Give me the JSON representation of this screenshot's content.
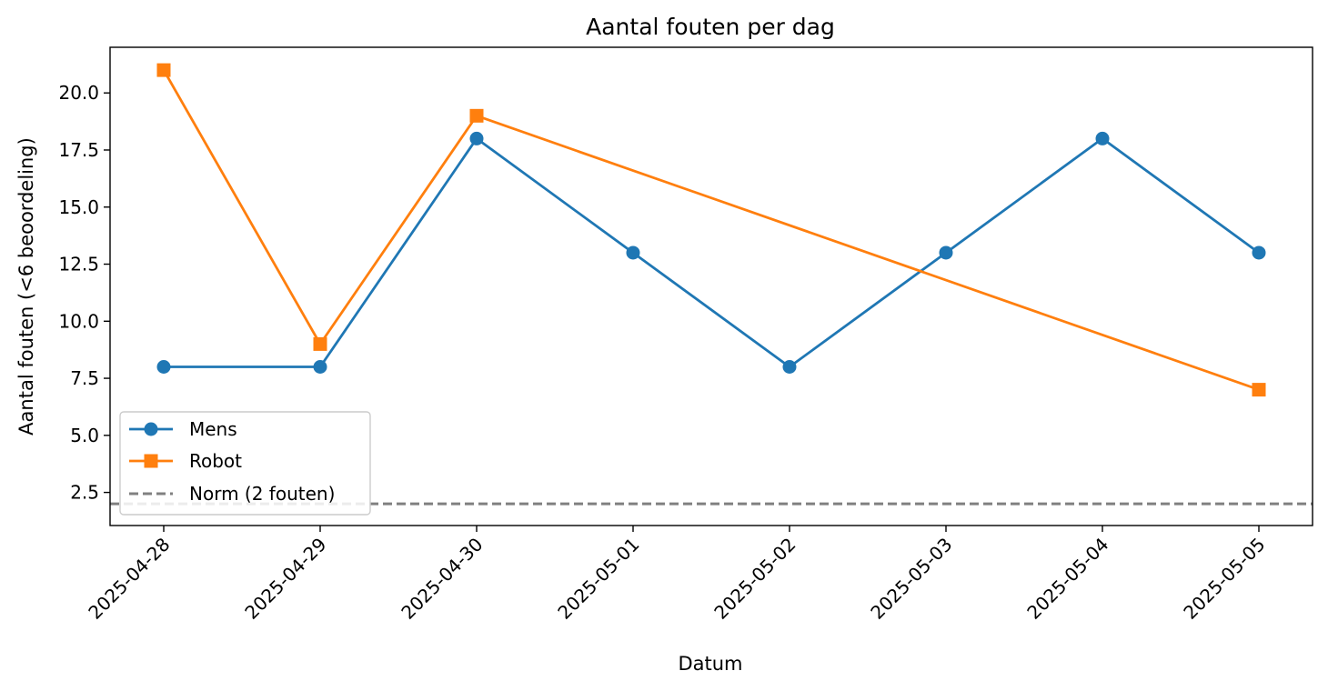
{
  "chart_data": {
    "type": "line",
    "title": "Aantal fouten per dag",
    "xlabel": "Datum",
    "ylabel": "Aantal fouten (<6 beoordeling)",
    "categories": [
      "2025-04-28",
      "2025-04-29",
      "2025-04-30",
      "2025-05-01",
      "2025-05-02",
      "2025-05-03",
      "2025-05-04",
      "2025-05-05"
    ],
    "ylim": [
      1.05,
      22.0
    ],
    "yticks": [
      2.5,
      5.0,
      7.5,
      10.0,
      12.5,
      15.0,
      17.5,
      20.0
    ],
    "ytick_labels": [
      "2.5",
      "5.0",
      "7.5",
      "10.0",
      "12.5",
      "15.0",
      "17.5",
      "20.0"
    ],
    "grid": false,
    "legend_position": "lower-left",
    "series": [
      {
        "name": "Mens",
        "color": "#1f77b4",
        "marker": "circle",
        "x": [
          "2025-04-28",
          "2025-04-29",
          "2025-04-30",
          "2025-05-01",
          "2025-05-02",
          "2025-05-03",
          "2025-05-04",
          "2025-05-05"
        ],
        "values": [
          8,
          8,
          18,
          13,
          8,
          13,
          18,
          13
        ]
      },
      {
        "name": "Robot",
        "color": "#ff7f0e",
        "marker": "square",
        "x": [
          "2025-04-28",
          "2025-04-29",
          "2025-04-30",
          "2025-05-05"
        ],
        "values": [
          21,
          9,
          19,
          7
        ]
      }
    ],
    "reference_line": {
      "name": "Norm (2 fouten)",
      "value": 2,
      "color": "#808080",
      "style": "dashed"
    }
  }
}
